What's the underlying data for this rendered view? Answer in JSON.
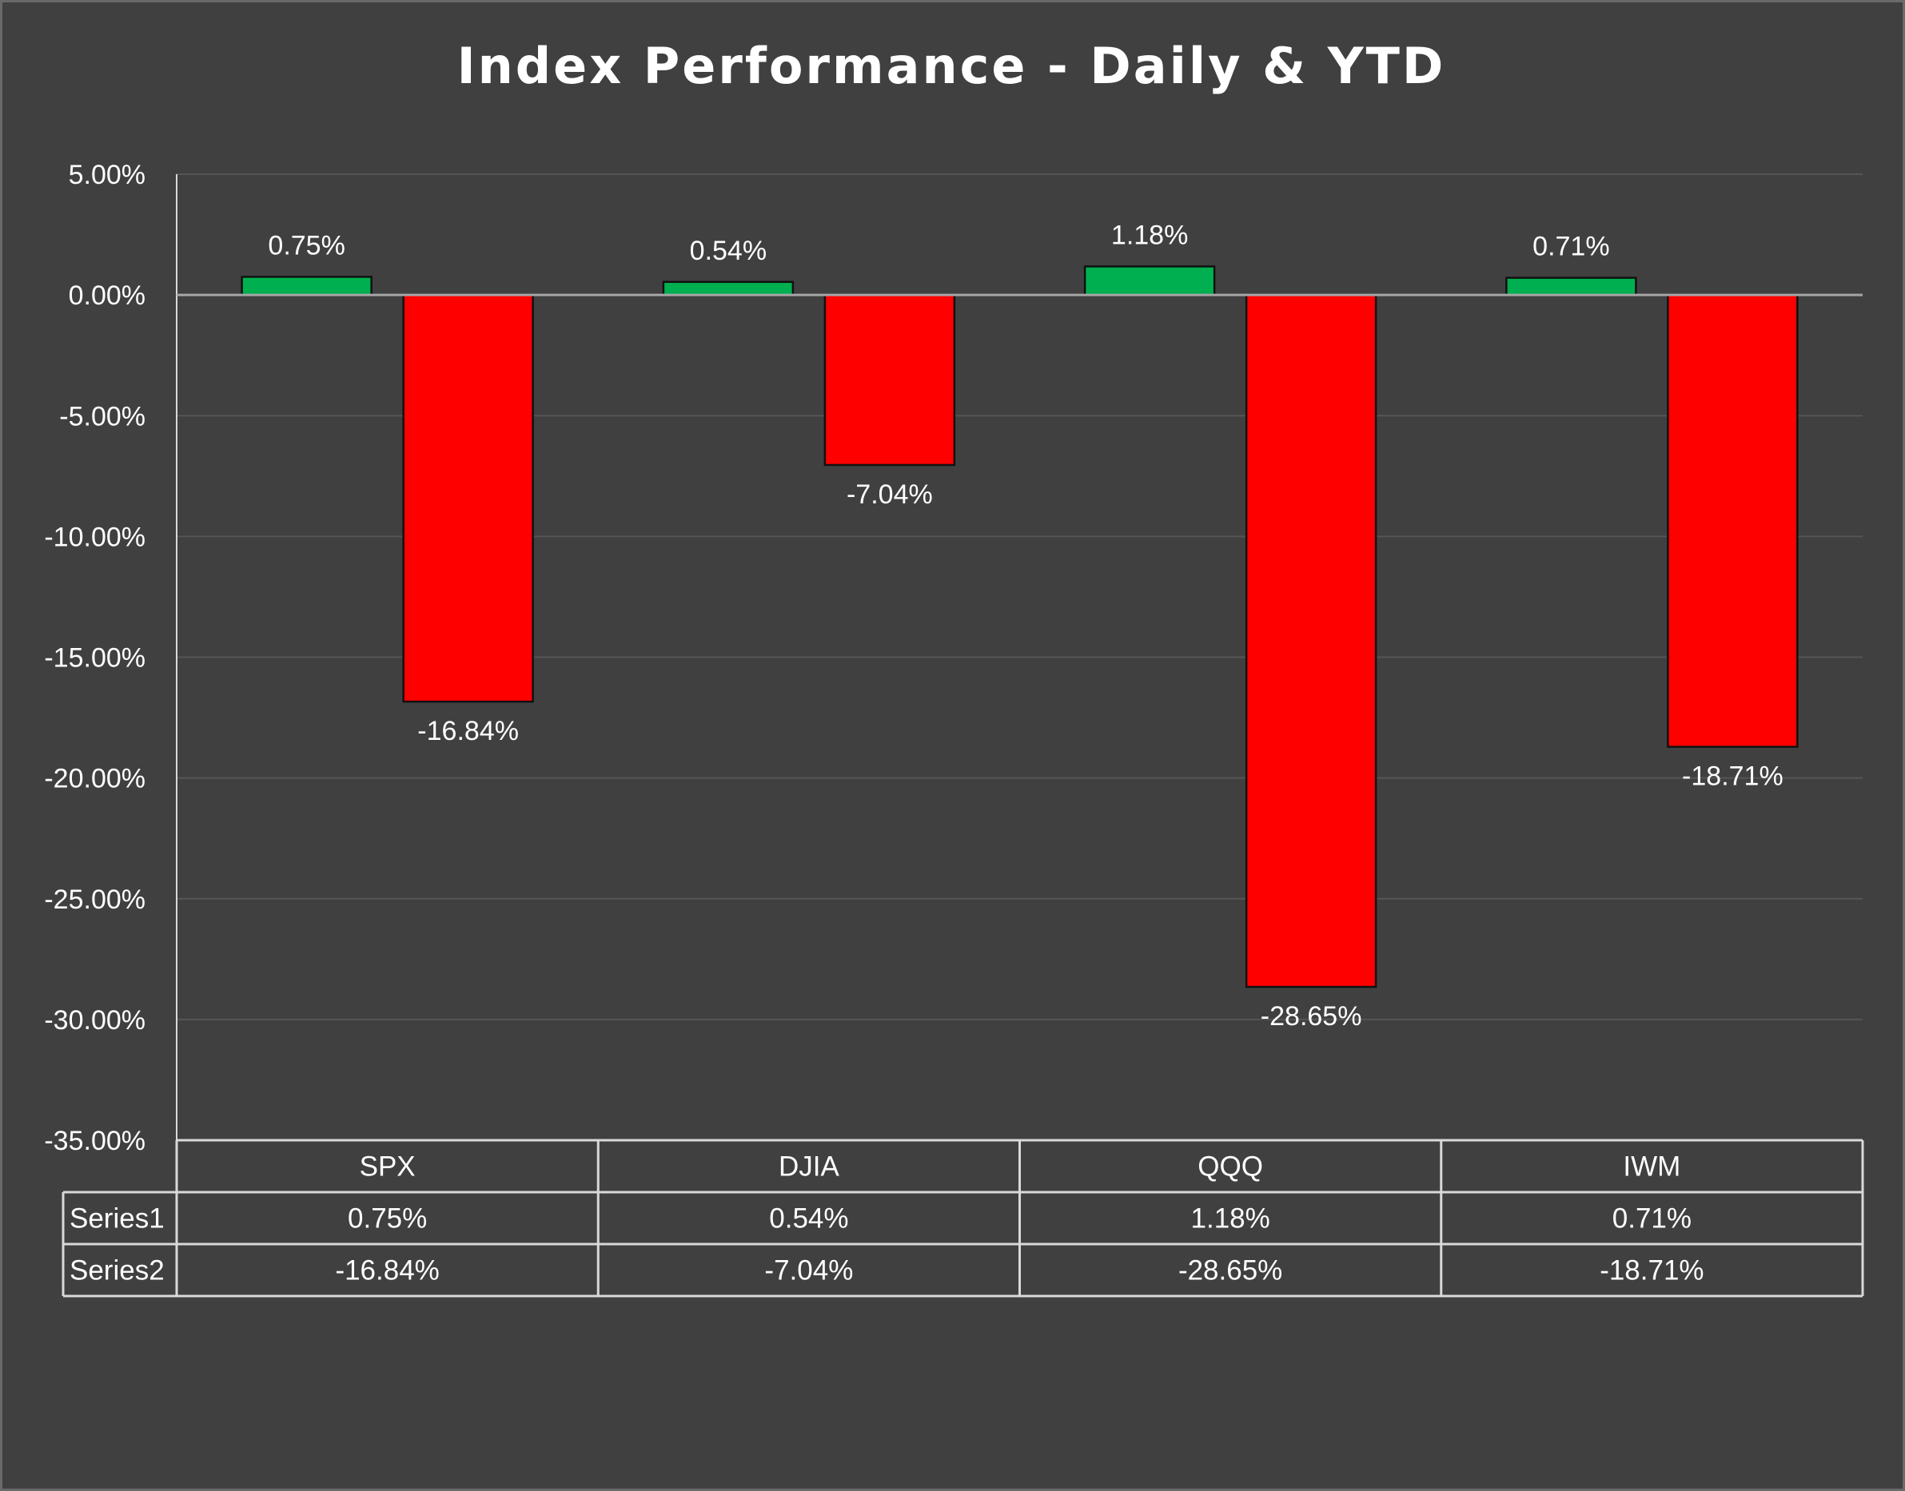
{
  "chart_data": {
    "type": "bar",
    "title": "Index Performance - Daily & YTD",
    "categories": [
      "SPX",
      "DJIA",
      "QQQ",
      "IWM"
    ],
    "series": [
      {
        "name": "Series1",
        "values": [
          0.75,
          0.54,
          1.18,
          0.71
        ],
        "labels": [
          "0.75%",
          "0.54%",
          "1.18%",
          "0.71%"
        ],
        "color": "#00b050"
      },
      {
        "name": "Series2",
        "values": [
          -16.84,
          -7.04,
          -28.65,
          -18.71
        ],
        "labels": [
          "-16.84%",
          "-7.04%",
          "-28.65%",
          "-18.71%"
        ],
        "color": "#ff0000"
      }
    ],
    "ylim": [
      -35,
      5
    ],
    "yticks": [
      5,
      0,
      -5,
      -10,
      -15,
      -20,
      -25,
      -30,
      -35
    ],
    "ytick_labels": [
      "5.00%",
      "0.00%",
      "-5.00%",
      "-10.00%",
      "-15.00%",
      "-20.00%",
      "-25.00%",
      "-30.00%",
      "-35.00%"
    ],
    "xlabel": "",
    "ylabel": "",
    "grid": true,
    "legend": "data-table"
  },
  "colors": {
    "background": "#404040",
    "gridline": "#555555",
    "zeroline": "#a6a6a6",
    "text": "#ffffff",
    "bar_outline": "#111111"
  }
}
